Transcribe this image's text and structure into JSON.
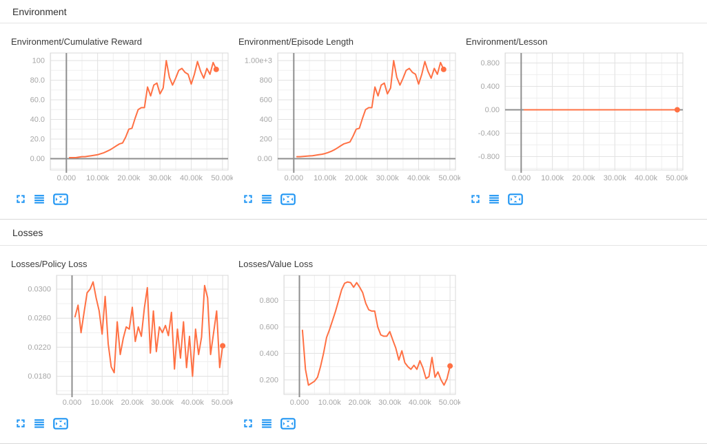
{
  "colors": {
    "line": "#ff7043",
    "icon": "#2196f3",
    "grid_minor": "#efefef",
    "grid_major": "#e2e2e2",
    "plot_border": "#d9d9d9",
    "zero_axis": "#8e8e8e",
    "tick_label": "#a6a6a6"
  },
  "sections": [
    {
      "title": "Environment",
      "chart_indexes": [
        0,
        1,
        2
      ]
    },
    {
      "title": "Losses",
      "chart_indexes": [
        3,
        4
      ]
    }
  ],
  "chart_toolbar": {
    "buttons": [
      {
        "name": "expand",
        "icon": "fullscreen-icon"
      },
      {
        "name": "runs",
        "icon": "menu-icon"
      },
      {
        "name": "fit-domain",
        "icon": "fit-to-data-icon"
      }
    ]
  },
  "chart_data": [
    {
      "type": "line",
      "title": "Environment/Cumulative Reward",
      "xlabel": "",
      "ylabel": "",
      "xlim": [
        -5150,
        51800
      ],
      "ylim": [
        -11.6,
        107.7
      ],
      "xticks": {
        "values": [
          0,
          10000,
          20000,
          30000,
          40000,
          50000
        ],
        "labels": [
          "0.000",
          "10.00k",
          "20.00k",
          "30.00k",
          "40.00k",
          "50.00k"
        ]
      },
      "yticks": {
        "values": [
          0,
          20,
          40,
          60,
          80,
          100
        ],
        "labels": [
          "0.00",
          "20.0",
          "40.0",
          "60.0",
          "80.0",
          "100"
        ]
      },
      "x_minor_step": 5000,
      "y_minor_step": 10,
      "zero_x": true,
      "zero_y": true,
      "end_marker": true,
      "grid": true,
      "legend": "none",
      "x": [
        1000,
        2000,
        3000,
        4000,
        5000,
        6000,
        7000,
        8000,
        9000,
        10000,
        11000,
        12000,
        13000,
        14000,
        15000,
        16000,
        17000,
        18000,
        19000,
        20000,
        21000,
        22000,
        23000,
        24000,
        25000,
        26000,
        27000,
        28000,
        29000,
        30000,
        31000,
        32000,
        33000,
        34000,
        35000,
        36000,
        37000,
        38000,
        39000,
        40000,
        41000,
        42000,
        43000,
        44000,
        45000,
        46000,
        47000,
        48000
      ],
      "y": [
        1,
        1,
        1,
        1.5,
        2,
        2,
        2.5,
        3,
        3.5,
        4,
        5,
        6,
        7.5,
        9,
        11,
        13,
        15,
        16,
        22,
        30,
        31,
        41,
        50,
        52,
        52,
        73,
        64,
        75,
        77,
        66,
        72,
        100,
        83,
        75,
        82,
        90,
        92,
        88,
        86,
        76,
        86,
        99,
        89,
        82,
        92,
        86,
        98,
        91
      ]
    },
    {
      "type": "line",
      "title": "Environment/Episode Length",
      "xlabel": "",
      "ylabel": "",
      "xlim": [
        -5150,
        51800
      ],
      "ylim": [
        -116,
        1077
      ],
      "xticks": {
        "values": [
          0,
          10000,
          20000,
          30000,
          40000,
          50000
        ],
        "labels": [
          "0.000",
          "10.00k",
          "20.00k",
          "30.00k",
          "40.00k",
          "50.00k"
        ]
      },
      "yticks": {
        "values": [
          0,
          200,
          400,
          600,
          800,
          1000
        ],
        "labels": [
          "0.00",
          "200",
          "400",
          "600",
          "800",
          "1.00e+3"
        ]
      },
      "x_minor_step": 5000,
      "y_minor_step": 100,
      "zero_x": true,
      "zero_y": true,
      "end_marker": true,
      "grid": true,
      "legend": "none",
      "x": [
        1000,
        2000,
        3000,
        4000,
        5000,
        6000,
        7000,
        8000,
        9000,
        10000,
        11000,
        12000,
        13000,
        14000,
        15000,
        16000,
        17000,
        18000,
        19000,
        20000,
        21000,
        22000,
        23000,
        24000,
        25000,
        26000,
        27000,
        28000,
        29000,
        30000,
        31000,
        32000,
        33000,
        34000,
        35000,
        36000,
        37000,
        38000,
        39000,
        40000,
        41000,
        42000,
        43000,
        44000,
        45000,
        46000,
        47000,
        48000
      ],
      "y": [
        20,
        20,
        22,
        25,
        28,
        30,
        35,
        40,
        45,
        52,
        62,
        75,
        90,
        110,
        130,
        150,
        160,
        170,
        230,
        300,
        310,
        410,
        500,
        520,
        520,
        730,
        640,
        750,
        770,
        660,
        720,
        1000,
        830,
        750,
        820,
        900,
        920,
        880,
        860,
        760,
        860,
        990,
        890,
        820,
        920,
        860,
        980,
        910
      ]
    },
    {
      "type": "line",
      "title": "Environment/Lesson",
      "xlabel": "",
      "ylabel": "",
      "xlim": [
        -5150,
        51800
      ],
      "ylim": [
        -1.03,
        0.97
      ],
      "xticks": {
        "values": [
          0,
          10000,
          20000,
          30000,
          40000,
          50000
        ],
        "labels": [
          "0.000",
          "10.00k",
          "20.00k",
          "30.00k",
          "40.00k",
          "50.00k"
        ]
      },
      "yticks": {
        "values": [
          -0.8,
          -0.4,
          0,
          0.4,
          0.8
        ],
        "labels": [
          "-0.800",
          "-0.400",
          "0.00",
          "0.400",
          "0.800"
        ]
      },
      "x_minor_step": 5000,
      "y_minor_step": 0.2,
      "zero_x": true,
      "zero_y": true,
      "end_marker": true,
      "grid": true,
      "legend": "none",
      "x": [
        1000,
        50000
      ],
      "y": [
        0,
        0
      ]
    },
    {
      "type": "line",
      "title": "Losses/Policy Loss",
      "xlabel": "",
      "ylabel": "",
      "xlim": [
        -5150,
        51800
      ],
      "ylim": [
        0.0155,
        0.0319
      ],
      "xticks": {
        "values": [
          0,
          10000,
          20000,
          30000,
          40000,
          50000
        ],
        "labels": [
          "0.000",
          "10.00k",
          "20.00k",
          "30.00k",
          "40.00k",
          "50.00k"
        ]
      },
      "yticks": {
        "values": [
          0.018,
          0.022,
          0.026,
          0.03
        ],
        "labels": [
          "0.0180",
          "0.0220",
          "0.0260",
          "0.0300"
        ]
      },
      "x_minor_step": 5000,
      "y_minor_step": 0.002,
      "zero_x": true,
      "zero_y": false,
      "end_marker": true,
      "grid": true,
      "legend": "none",
      "x": [
        1000,
        2000,
        3000,
        4000,
        5000,
        6000,
        7000,
        8000,
        9000,
        10000,
        11000,
        12000,
        13000,
        14000,
        15000,
        16000,
        17000,
        18000,
        19000,
        20000,
        21000,
        22000,
        23000,
        24000,
        25000,
        26000,
        27000,
        28000,
        29000,
        30000,
        31000,
        32000,
        33000,
        34000,
        35000,
        36000,
        37000,
        38000,
        39000,
        40000,
        41000,
        42000,
        43000,
        44000,
        45000,
        46000,
        47000,
        48000,
        49000,
        50000
      ],
      "y": [
        0.0262,
        0.0278,
        0.024,
        0.0268,
        0.0295,
        0.03,
        0.031,
        0.0288,
        0.027,
        0.0238,
        0.029,
        0.0225,
        0.0193,
        0.0185,
        0.0255,
        0.021,
        0.0232,
        0.0248,
        0.0245,
        0.0275,
        0.0228,
        0.0248,
        0.0235,
        0.0274,
        0.0302,
        0.0212,
        0.027,
        0.0214,
        0.0248,
        0.024,
        0.025,
        0.0236,
        0.0268,
        0.019,
        0.0245,
        0.0205,
        0.0255,
        0.0192,
        0.0235,
        0.018,
        0.0245,
        0.021,
        0.0234,
        0.0305,
        0.0288,
        0.021,
        0.024,
        0.027,
        0.0192,
        0.0222
      ]
    },
    {
      "type": "line",
      "title": "Losses/Value Loss",
      "xlabel": "",
      "ylabel": "",
      "xlim": [
        -5150,
        51800
      ],
      "ylim": [
        0.09,
        0.99
      ],
      "xticks": {
        "values": [
          0,
          10000,
          20000,
          30000,
          40000,
          50000
        ],
        "labels": [
          "0.000",
          "10.00k",
          "20.00k",
          "30.00k",
          "40.00k",
          "50.00k"
        ]
      },
      "yticks": {
        "values": [
          0.2,
          0.4,
          0.6,
          0.8
        ],
        "labels": [
          "0.200",
          "0.400",
          "0.600",
          "0.800"
        ]
      },
      "x_minor_step": 5000,
      "y_minor_step": 0.1,
      "zero_x": true,
      "zero_y": false,
      "end_marker": true,
      "grid": true,
      "legend": "none",
      "x": [
        1000,
        2000,
        3000,
        4000,
        5000,
        6000,
        7000,
        8000,
        9000,
        10000,
        11000,
        12000,
        13000,
        14000,
        15000,
        16000,
        17000,
        18000,
        19000,
        20000,
        21000,
        22000,
        23000,
        24000,
        25000,
        26000,
        27000,
        28000,
        29000,
        30000,
        31000,
        32000,
        33000,
        34000,
        35000,
        36000,
        37000,
        38000,
        39000,
        40000,
        41000,
        42000,
        43000,
        44000,
        45000,
        46000,
        47000,
        48000,
        49000,
        50000
      ],
      "y": [
        0.575,
        0.28,
        0.16,
        0.175,
        0.19,
        0.22,
        0.3,
        0.4,
        0.52,
        0.58,
        0.65,
        0.72,
        0.8,
        0.88,
        0.93,
        0.94,
        0.935,
        0.9,
        0.935,
        0.9,
        0.86,
        0.78,
        0.73,
        0.72,
        0.72,
        0.6,
        0.54,
        0.53,
        0.53,
        0.565,
        0.5,
        0.44,
        0.35,
        0.42,
        0.33,
        0.3,
        0.28,
        0.31,
        0.28,
        0.345,
        0.29,
        0.21,
        0.225,
        0.37,
        0.22,
        0.26,
        0.2,
        0.16,
        0.21,
        0.305
      ]
    }
  ]
}
